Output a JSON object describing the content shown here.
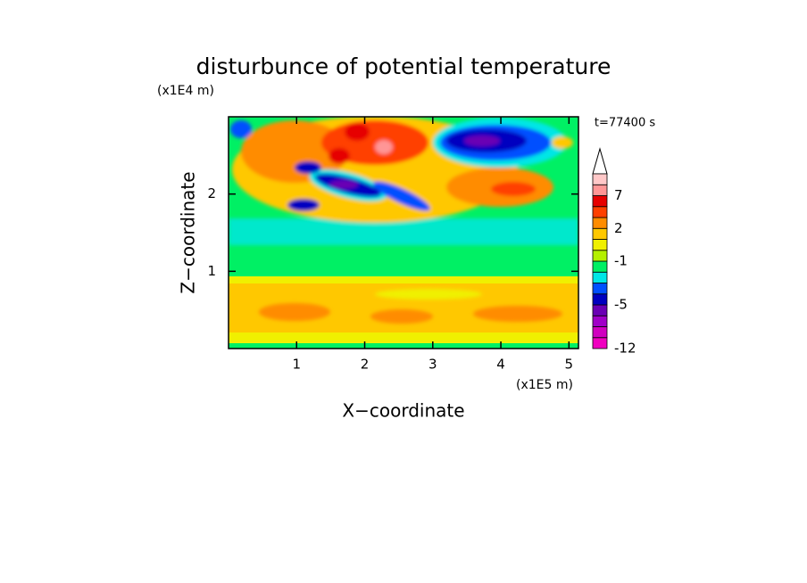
{
  "chart_data": {
    "type": "contour",
    "title": "disturbunce of potential temperature",
    "x_label": "X−coordinate",
    "y_label": "Z−coordinate",
    "x_unit": "(x1E5 m)",
    "y_unit": "(x1E4 m)",
    "time_label": "t=77400 s",
    "xlim": [
      0,
      5.14
    ],
    "ylim": [
      0,
      3
    ],
    "xticks": [
      1,
      2,
      3,
      4,
      5
    ],
    "yticks": [
      1,
      2
    ],
    "colorbar": {
      "levels": [
        -12,
        -10,
        -8,
        -6,
        -5,
        -4,
        -3,
        -2,
        -1,
        0,
        1,
        2,
        3,
        5,
        7,
        9,
        11
      ],
      "colors": [
        "#f000c0",
        "#d000c0",
        "#a000c8",
        "#6a00b4",
        "#0000c0",
        "#0050ff",
        "#00e6e6",
        "#00f064",
        "#b4f000",
        "#f0f000",
        "#ffc800",
        "#ff8c00",
        "#ff4000",
        "#e60000",
        "#ff9696",
        "#ffc8c8"
      ],
      "labels": [
        -12,
        -5,
        -1,
        2,
        7
      ]
    }
  }
}
